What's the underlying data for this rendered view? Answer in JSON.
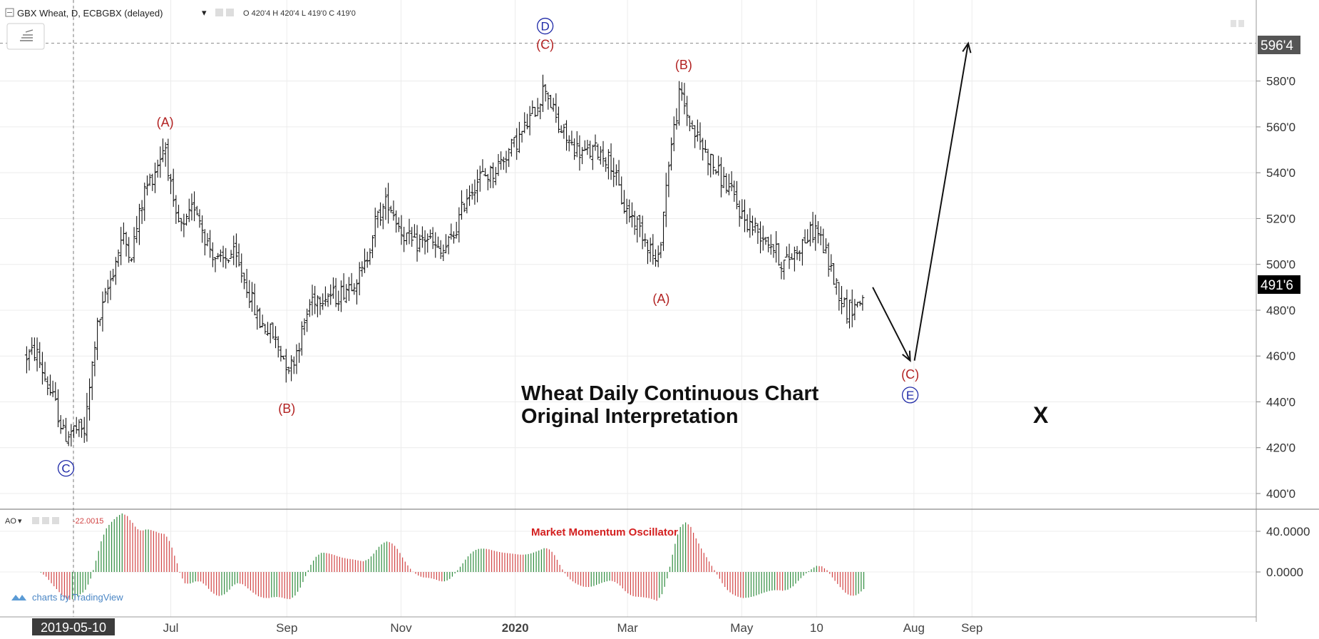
{
  "header": {
    "symbol": "GBX Wheat, D, ECBGBX (delayed)",
    "ohlc": "O 420'4  H 420'4  L 419'0  C 419'0"
  },
  "price_labels": {
    "current": "491'6",
    "target": "596'4"
  },
  "annotations": {
    "title_line1": "Wheat Daily Continuous Chart",
    "title_line2": "Original Interpretation",
    "x_label": "X"
  },
  "oscillator": {
    "name": "AO",
    "value": "-22.0015",
    "title": "Market Momentum Oscillator",
    "ticks": [
      "40.0000",
      "0.0000"
    ]
  },
  "watermark": "charts by TradingView",
  "colors": {
    "bars": "#000000",
    "ao_up": "#2e8b3d",
    "ao_down": "#d24444",
    "wave_red": "#b22222",
    "wave_blue": "#1f2aa8",
    "current_label_bg": "#000000",
    "target_label_bg": "#555555"
  },
  "chart_data": {
    "type": "ohlc",
    "title": "Wheat Daily Continuous Chart",
    "ylim": [
      390,
      605
    ],
    "y_ticks": [
      "400'0",
      "420'0",
      "440'0",
      "460'0",
      "480'0",
      "500'0",
      "520'0",
      "540'0",
      "560'0",
      "580'0"
    ],
    "y_tick_values": [
      400,
      420,
      440,
      460,
      480,
      500,
      520,
      540,
      560,
      580
    ],
    "x_ticks": [
      {
        "label": "2019-05-10",
        "date": "2019-05-10",
        "highlight": true
      },
      {
        "label": "Jul",
        "date": "2019-07-01"
      },
      {
        "label": "Sep",
        "date": "2019-09-01"
      },
      {
        "label": "Nov",
        "date": "2019-11-01"
      },
      {
        "label": "2020",
        "date": "2020-01-01",
        "bold": true
      },
      {
        "label": "Mar",
        "date": "2020-03-01"
      },
      {
        "label": "May",
        "date": "2020-05-01"
      },
      {
        "label": "10",
        "date": "2020-06-10"
      },
      {
        "label": "Aug",
        "date": "2020-08-01"
      },
      {
        "label": "Sep",
        "date": "2020-09-01"
      }
    ],
    "price_path": [
      [
        "2019-04-15",
        460
      ],
      [
        "2019-04-20",
        462
      ],
      [
        "2019-04-25",
        450
      ],
      [
        "2019-05-01",
        437
      ],
      [
        "2019-05-05",
        425
      ],
      [
        "2019-05-10",
        428
      ],
      [
        "2019-05-16",
        427
      ],
      [
        "2019-05-22",
        470
      ],
      [
        "2019-05-28",
        488
      ],
      [
        "2019-06-05",
        512
      ],
      [
        "2019-06-10",
        505
      ],
      [
        "2019-06-17",
        532
      ],
      [
        "2019-06-22",
        540
      ],
      [
        "2019-06-28",
        553
      ],
      [
        "2019-07-03",
        520
      ],
      [
        "2019-07-08",
        515
      ],
      [
        "2019-07-14",
        527
      ],
      [
        "2019-07-20",
        510
      ],
      [
        "2019-07-27",
        500
      ],
      [
        "2019-08-03",
        505
      ],
      [
        "2019-08-10",
        492
      ],
      [
        "2019-08-17",
        475
      ],
      [
        "2019-08-24",
        470
      ],
      [
        "2019-08-31",
        458
      ],
      [
        "2019-09-03",
        455
      ],
      [
        "2019-09-08",
        467
      ],
      [
        "2019-09-14",
        485
      ],
      [
        "2019-09-21",
        487
      ],
      [
        "2019-09-28",
        486
      ],
      [
        "2019-10-05",
        492
      ],
      [
        "2019-10-12",
        497
      ],
      [
        "2019-10-18",
        518
      ],
      [
        "2019-10-25",
        528
      ],
      [
        "2019-11-01",
        515
      ],
      [
        "2019-11-08",
        508
      ],
      [
        "2019-11-15",
        512
      ],
      [
        "2019-11-22",
        504
      ],
      [
        "2019-11-29",
        512
      ],
      [
        "2019-12-06",
        530
      ],
      [
        "2019-12-13",
        538
      ],
      [
        "2019-12-20",
        540
      ],
      [
        "2019-12-27",
        548
      ],
      [
        "2020-01-03",
        555
      ],
      [
        "2020-01-10",
        565
      ],
      [
        "2020-01-17",
        578
      ],
      [
        "2020-01-24",
        560
      ],
      [
        "2020-01-31",
        552
      ],
      [
        "2020-02-07",
        548
      ],
      [
        "2020-02-14",
        550
      ],
      [
        "2020-02-21",
        545
      ],
      [
        "2020-02-28",
        525
      ],
      [
        "2020-03-06",
        518
      ],
      [
        "2020-03-13",
        508
      ],
      [
        "2020-03-17",
        498
      ],
      [
        "2020-03-23",
        545
      ],
      [
        "2020-03-29",
        575
      ],
      [
        "2020-04-04",
        560
      ],
      [
        "2020-04-11",
        550
      ],
      [
        "2020-04-18",
        540
      ],
      [
        "2020-04-25",
        532
      ],
      [
        "2020-05-02",
        520
      ],
      [
        "2020-05-09",
        515
      ],
      [
        "2020-05-16",
        510
      ],
      [
        "2020-05-23",
        500
      ],
      [
        "2020-05-29",
        505
      ],
      [
        "2020-06-05",
        512
      ],
      [
        "2020-06-10",
        516
      ],
      [
        "2020-06-15",
        504
      ],
      [
        "2020-06-20",
        492
      ],
      [
        "2020-06-26",
        480
      ],
      [
        "2020-07-02",
        483
      ],
      [
        "2020-07-06",
        487
      ]
    ],
    "projection": [
      [
        "2020-07-10",
        490
      ],
      [
        "2020-07-30",
        458
      ],
      [
        "2020-08-30",
        596.5
      ]
    ],
    "target_price": 596.5,
    "current_price": 491.75,
    "wave_labels": [
      {
        "text": "C",
        "date": "2019-05-06",
        "price": 411,
        "color": "blue",
        "circled": true
      },
      {
        "text": "(A)",
        "date": "2019-06-28",
        "price": 562,
        "color": "red"
      },
      {
        "text": "(B)",
        "date": "2019-09-01",
        "price": 437,
        "color": "red"
      },
      {
        "text": "(C)",
        "date": "2020-01-17",
        "price": 596,
        "color": "red"
      },
      {
        "text": "D",
        "date": "2020-01-17",
        "price": 604,
        "color": "blue",
        "circled": true
      },
      {
        "text": "(B)",
        "date": "2020-03-31",
        "price": 587,
        "color": "red"
      },
      {
        "text": "(A)",
        "date": "2020-03-19",
        "price": 485,
        "color": "red"
      },
      {
        "text": "(C)",
        "date": "2020-07-30",
        "price": 452,
        "color": "red"
      },
      {
        "text": "E",
        "date": "2020-07-30",
        "price": 443,
        "color": "blue",
        "circled": true
      }
    ]
  }
}
